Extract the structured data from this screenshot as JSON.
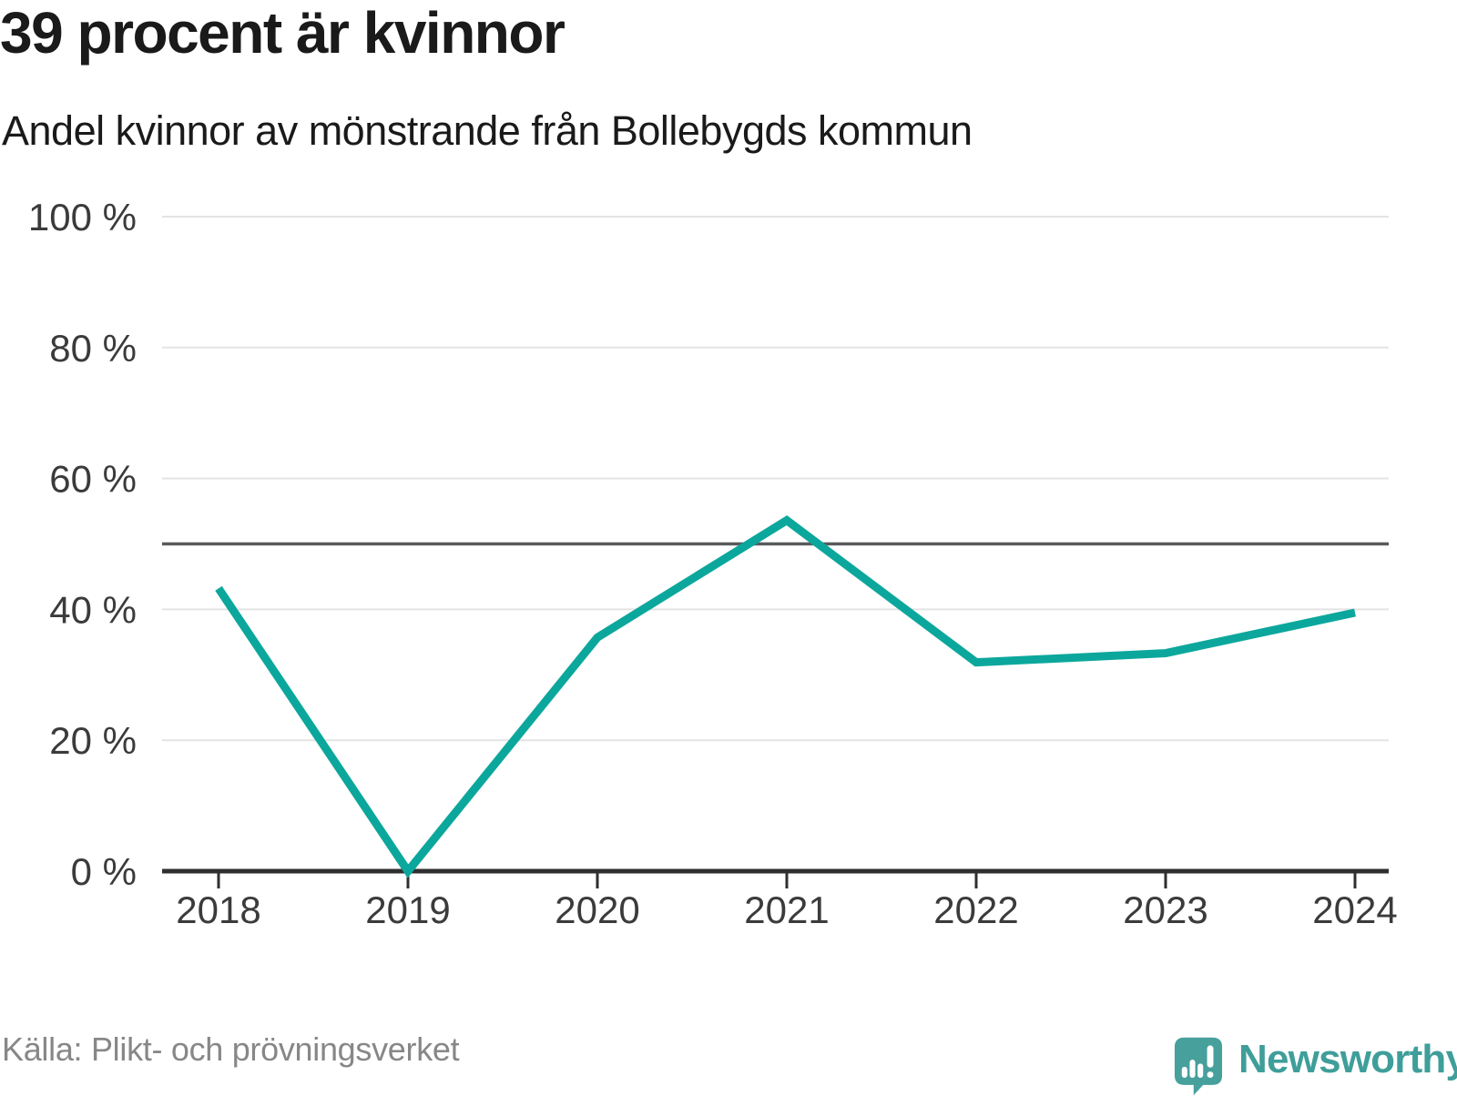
{
  "header": {
    "title": "39 procent är kvinnor",
    "subtitle": "Andel kvinnor av mönstrande från Bollebygds kommun"
  },
  "chart_data": {
    "type": "line",
    "title": "39 procent är kvinnor",
    "subtitle": "Andel kvinnor av mönstrande från Bollebygds kommun",
    "x": [
      2018,
      2019,
      2020,
      2021,
      2022,
      2023,
      2024
    ],
    "series": [
      {
        "name": "Andel kvinnor av mönstrande",
        "values": [
          43.2,
          0,
          35.7,
          53.6,
          31.9,
          33.3,
          39.5
        ]
      }
    ],
    "ylim": [
      0,
      100
    ],
    "yticks": [
      0,
      20,
      40,
      60,
      80,
      100
    ],
    "ytick_labels": [
      "0 %",
      "20 %",
      "40 %",
      "60 %",
      "80 %",
      "100 %"
    ],
    "reference_line": 50,
    "grid": "horizontal-only",
    "legend": "none",
    "colors": {
      "line": "#0ca79c",
      "reference_line": "#595a5c",
      "axis": "#2f2f2f",
      "gridline": "#e3e3e3",
      "tick_label": "#3b3b3b"
    }
  },
  "footer": {
    "source": "Källa: Plikt- och prövningsverket",
    "brand": "Newsworthy",
    "brand_color": "#3f9e9a"
  }
}
